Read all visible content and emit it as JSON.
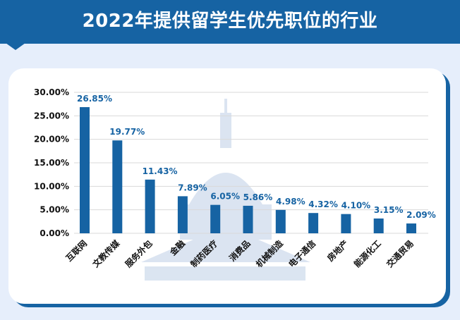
{
  "header": {
    "title": "2022年提供留学生优先职位的行业"
  },
  "colors": {
    "bar": "#1663a3",
    "header": "#1663a3",
    "background": "#e6eefb",
    "watermark": "#d5e0ef"
  },
  "chart_data": {
    "type": "bar",
    "title": "2022年提供留学生优先职位的行业",
    "categories": [
      "互联网",
      "文教传媒",
      "服务外包",
      "金融",
      "制药医疗",
      "消费品",
      "机械制造",
      "电子通信",
      "房地产",
      "能源化工",
      "交通贸易"
    ],
    "values": [
      26.85,
      19.77,
      11.43,
      7.89,
      6.05,
      5.86,
      4.98,
      4.32,
      4.1,
      3.15,
      2.09
    ],
    "data_labels": [
      "26.85%",
      "19.77%",
      "11.43%",
      "7.89%",
      "6.05%",
      "5.86%",
      "4.98%",
      "4.32%",
      "4.10%",
      "3.15%",
      "2.09%"
    ],
    "yticks": [
      "0.00%",
      "5.00%",
      "10.00%",
      "15.00%",
      "20.00%",
      "25.00%",
      "30.00%"
    ],
    "ylim": [
      0,
      30
    ],
    "xlabel": "",
    "ylabel": "",
    "grid": true,
    "watermark": "capitol-building"
  }
}
